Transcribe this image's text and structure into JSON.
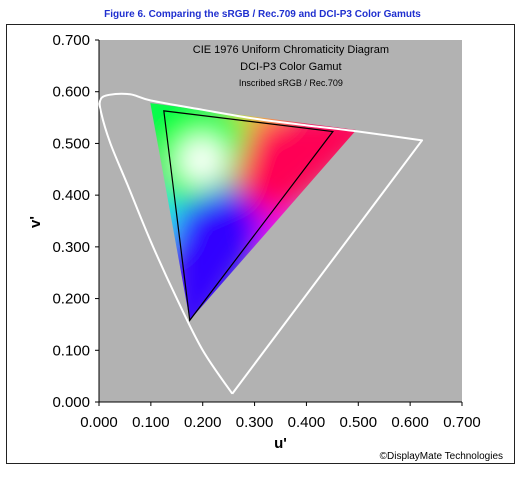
{
  "figure_title": "Figure 6.  Comparing the sRGB / Rec.709 and DCI-P3 Color Gamuts",
  "credit": "©DisplayMate Technologies",
  "chart_data": {
    "type": "scatter",
    "title_lines": [
      "CIE 1976 Uniform Chromaticity Diagram",
      "DCI-P3 Color Gamut",
      "Inscribed sRGB / Rec.709"
    ],
    "xlabel": "u'",
    "ylabel": "v'",
    "xlim": [
      0,
      0.7
    ],
    "ylim": [
      0,
      0.7
    ],
    "x_ticks": [
      "0.000",
      "0.100",
      "0.200",
      "0.300",
      "0.400",
      "0.500",
      "0.600",
      "0.700"
    ],
    "y_ticks": [
      "0.000",
      "0.100",
      "0.200",
      "0.300",
      "0.400",
      "0.500",
      "0.600",
      "0.700"
    ],
    "grid": false,
    "plot_background": "#b2b2b2",
    "spectral_locus": {
      "color": "#ffffff",
      "points": [
        [
          0.257,
          0.016
        ],
        [
          0.2,
          0.1
        ],
        [
          0.15,
          0.2
        ],
        [
          0.1,
          0.31
        ],
        [
          0.055,
          0.42
        ],
        [
          0.022,
          0.5
        ],
        [
          0.004,
          0.56
        ],
        [
          0.003,
          0.585
        ],
        [
          0.02,
          0.594
        ],
        [
          0.06,
          0.595
        ],
        [
          0.1,
          0.583
        ],
        [
          0.2,
          0.565
        ],
        [
          0.3,
          0.548
        ],
        [
          0.4,
          0.535
        ],
        [
          0.5,
          0.523
        ],
        [
          0.623,
          0.506
        ]
      ],
      "closed": true
    },
    "dci_p3_gamut": {
      "vertices": [
        [
          0.496,
          0.526
        ],
        [
          0.099,
          0.578
        ],
        [
          0.175,
          0.158
        ]
      ],
      "vertex_colors": [
        "#ff0055",
        "#00ff44",
        "#3300ff"
      ],
      "white_point": [
        0.198,
        0.468
      ]
    },
    "srgb_gamut": {
      "color": "#000000",
      "vertices": [
        [
          0.451,
          0.523
        ],
        [
          0.125,
          0.563
        ],
        [
          0.175,
          0.158
        ]
      ]
    }
  }
}
